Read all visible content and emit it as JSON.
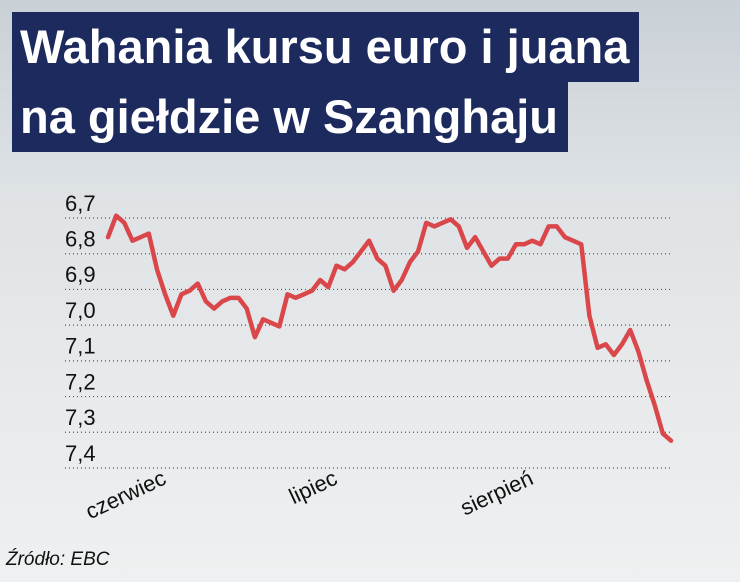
{
  "chart_data": {
    "type": "line",
    "title": [
      "Wahania kursu euro i juana",
      "na giełdzie w Szanghaju"
    ],
    "source": "Źródło: EBC",
    "categories": [
      null,
      null,
      null,
      null,
      null,
      null,
      null,
      "czerwiec",
      null,
      null,
      null,
      null,
      null,
      null,
      null,
      null,
      null,
      null,
      null,
      null,
      null,
      null,
      null,
      null,
      null,
      null,
      null,
      null,
      "lipiec",
      null,
      null,
      null,
      null,
      null,
      null,
      null,
      null,
      null,
      null,
      null,
      null,
      null,
      null,
      null,
      null,
      null,
      null,
      null,
      null,
      null,
      null,
      null,
      "sierpień",
      null,
      null,
      null,
      null,
      null,
      null,
      null,
      null,
      null,
      null,
      null,
      null,
      null,
      null,
      null,
      null,
      null
    ],
    "series": [
      {
        "color": "#d9474a",
        "values": [
          6.79,
          6.73,
          6.75,
          6.8,
          6.79,
          6.78,
          6.88,
          6.95,
          7.01,
          6.95,
          6.94,
          6.92,
          6.97,
          6.99,
          6.97,
          6.96,
          6.96,
          6.99,
          7.07,
          7.02,
          7.03,
          7.04,
          6.95,
          6.96,
          6.95,
          6.94,
          6.91,
          6.93,
          6.87,
          6.88,
          6.86,
          6.83,
          6.8,
          6.85,
          6.87,
          6.94,
          6.91,
          6.86,
          6.83,
          6.75,
          6.76,
          6.75,
          6.74,
          6.76,
          6.82,
          6.79,
          6.83,
          6.87,
          6.85,
          6.85,
          6.81,
          6.81,
          6.8,
          6.81,
          6.76,
          6.76,
          6.79,
          6.8,
          6.81,
          7.01,
          7.1,
          7.09,
          7.12,
          7.09,
          7.05,
          7.11,
          7.19,
          7.26,
          7.34,
          7.36
        ]
      }
    ],
    "ylim": [
      6.7,
      7.4
    ],
    "y_inverted": true,
    "yticks": [
      {
        "value": 6.7,
        "label": "6,7"
      },
      {
        "value": 6.8,
        "label": "6,8"
      },
      {
        "value": 6.9,
        "label": "6,9"
      },
      {
        "value": 7.0,
        "label": "7,0"
      },
      {
        "value": 7.1,
        "label": "7,1"
      },
      {
        "value": 7.2,
        "label": "7,2"
      },
      {
        "value": 7.3,
        "label": "7,3"
      },
      {
        "value": 7.4,
        "label": "7,4"
      }
    ],
    "grid": true
  }
}
